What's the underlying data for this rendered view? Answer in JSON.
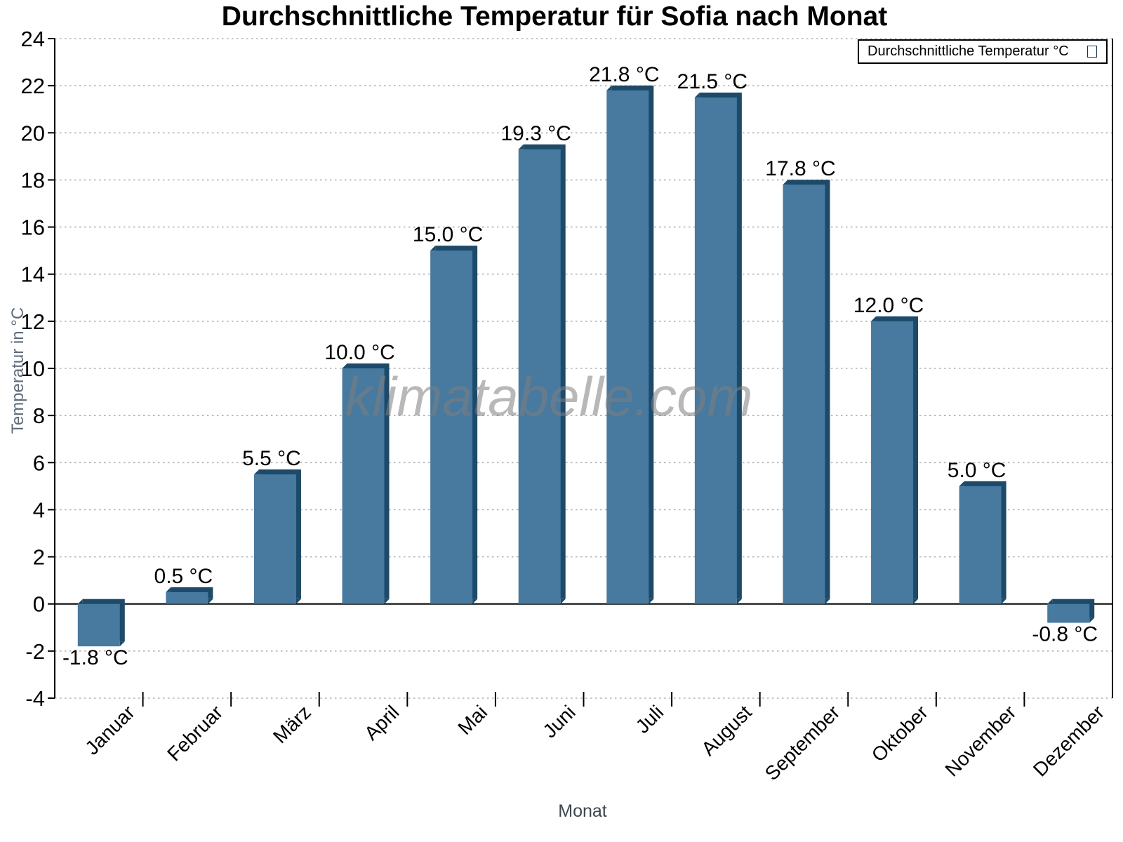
{
  "chart_data": {
    "type": "bar",
    "title": "Durchschnittliche Temperatur für Sofia nach Monat",
    "xlabel": "Monat",
    "ylabel": "Temperatur in °C",
    "watermark": "klimatabelle.com",
    "legend": {
      "label": "Durchschnittliche Temperatur °C",
      "position": "top-right"
    },
    "categories": [
      "Januar",
      "Februar",
      "März",
      "April",
      "Mai",
      "Juni",
      "Juli",
      "August",
      "September",
      "Oktober",
      "November",
      "Dezember"
    ],
    "series": [
      {
        "name": "Durchschnittliche Temperatur °C",
        "values": [
          -1.8,
          0.5,
          5.5,
          10.0,
          15.0,
          19.3,
          21.8,
          21.5,
          17.8,
          12.0,
          5.0,
          -0.8
        ],
        "labels": [
          "-1.8 °C",
          "0.5 °C",
          "5.5 °C",
          "10.0 °C",
          "15.0 °C",
          "19.3 °C",
          "21.8 °C",
          "21.5 °C",
          "17.8 °C",
          "12.0 °C",
          "5.0 °C",
          "-0.8 °C"
        ]
      }
    ],
    "ylim": [
      -4,
      24
    ],
    "yticks": [
      -4,
      -2,
      0,
      2,
      4,
      6,
      8,
      10,
      12,
      14,
      16,
      18,
      20,
      22,
      24
    ],
    "grid": "horizontal dotted",
    "colors": {
      "bar_face": "#48799F",
      "bar_shadow": "#1D4A69",
      "grid": "#b0b0b0",
      "axis": "#000000",
      "value_label": "#000000",
      "watermark": "#7f7f7f",
      "ylabel": "#5e6b78",
      "xlabel": "#3d4751"
    }
  }
}
